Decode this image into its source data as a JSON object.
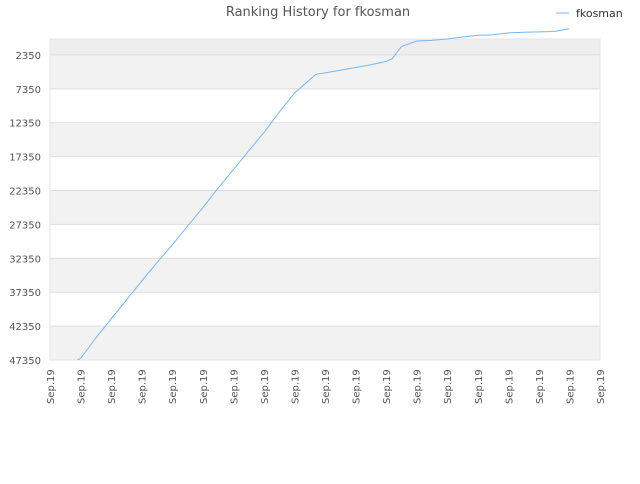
{
  "chart_data": {
    "type": "line",
    "title": "Ranking History for fkosman",
    "xlabel": "",
    "ylabel": "",
    "x_tick_labels": [
      "Sep.19",
      "Sep.19",
      "Sep.19",
      "Sep.19",
      "Sep.19",
      "Sep.19",
      "Sep.19",
      "Sep.19",
      "Sep.19",
      "Sep.19",
      "Sep.19",
      "Sep.19",
      "Sep.19",
      "Sep.19",
      "Sep.19",
      "Sep.19",
      "Sep.19",
      "Sep.19",
      "Sep.19"
    ],
    "y_ticks": [
      2350,
      7350,
      12350,
      17350,
      22350,
      27350,
      32350,
      37350,
      42350,
      47350
    ],
    "y_tick_labels": [
      "2350",
      "7350",
      "12350",
      "17350",
      "22350",
      "27350",
      "32350",
      "37350",
      "42350",
      "47350"
    ],
    "ylim": [
      0,
      47350
    ],
    "y_inverted": true,
    "grid": true,
    "legend": "top-right",
    "colors": {
      "series": "#7cb5ec",
      "band_shade": "#f2f2f2",
      "band_top": "#eeeeee",
      "grid": "#dddddd"
    },
    "series": [
      {
        "name": "fkosman",
        "x": [
          0.9,
          1.0,
          1.5,
          2.0,
          2.5,
          3.0,
          3.5,
          4.0,
          4.5,
          5.0,
          5.5,
          6.0,
          6.5,
          7.0,
          7.5,
          8.0,
          8.5,
          8.7,
          9.0,
          9.5,
          10.0,
          10.5,
          11.0,
          11.2,
          11.5,
          12.0,
          12.5,
          13.0,
          13.5,
          14.0,
          14.5,
          15.0,
          15.5,
          16.0,
          16.5,
          17.0
        ],
        "y": [
          47350,
          47100,
          44100,
          41300,
          38500,
          35700,
          33000,
          30400,
          27600,
          24900,
          22000,
          19300,
          16500,
          13800,
          10800,
          8000,
          6000,
          5200,
          5000,
          4600,
          4200,
          3800,
          3300,
          2900,
          1100,
          300,
          200,
          0,
          -300,
          -550,
          -600,
          -900,
          -1000,
          -1050,
          -1100,
          -1500
        ]
      }
    ]
  }
}
